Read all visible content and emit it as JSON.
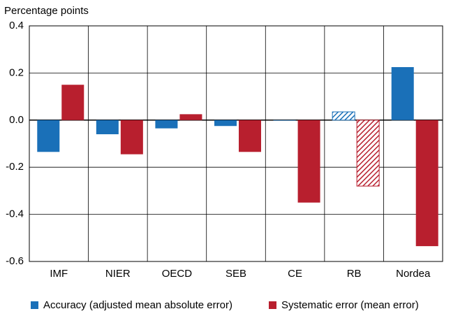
{
  "chart_data": {
    "type": "bar",
    "y_axis_label": "Percentage points",
    "categories": [
      "IMF",
      "NIER",
      "OECD",
      "SEB",
      "CE",
      "RB",
      "Nordea"
    ],
    "series": [
      {
        "name": "Accuracy (adjusted mean absolute error)",
        "color": "#1a70b8",
        "values": [
          -0.135,
          -0.06,
          -0.035,
          -0.025,
          -0.002,
          0.035,
          0.225
        ]
      },
      {
        "name": "Systematic error (mean error)",
        "color": "#b81f2e",
        "values": [
          0.15,
          -0.145,
          0.025,
          -0.135,
          -0.35,
          -0.28,
          -0.535
        ]
      }
    ],
    "hatch": [
      false,
      false,
      false,
      false,
      false,
      true,
      false
    ],
    "ylim": [
      -0.6,
      0.4
    ],
    "yticks": [
      -0.6,
      -0.4,
      -0.2,
      {
        "value": 0,
        "label": "0.0"
      },
      0.2,
      0.4
    ],
    "grid": true,
    "legend": "bottom"
  }
}
